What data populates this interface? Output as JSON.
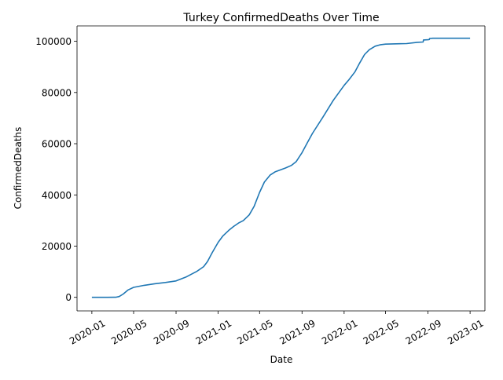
{
  "chart_data": {
    "type": "line",
    "title": "Turkey  ConfirmedDeaths Over Time",
    "xlabel": "Date",
    "ylabel": "ConfirmedDeaths",
    "xlim": [
      "2019-11-19",
      "2023-02-13"
    ],
    "ylim": [
      -5300,
      106000
    ],
    "x_ticks": [
      "2020-01",
      "2020-05",
      "2020-09",
      "2021-01",
      "2021-05",
      "2021-09",
      "2022-01",
      "2022-05",
      "2022-09",
      "2023-01"
    ],
    "y_ticks": [
      0,
      20000,
      40000,
      60000,
      80000,
      100000
    ],
    "y_tick_labels": [
      "0",
      "20000",
      "40000",
      "60000",
      "80000",
      "100000"
    ],
    "grid": false,
    "legend": "none",
    "line_color": "#1f77b4",
    "series": [
      {
        "x": [
          "2020-01-01",
          "2020-02-15",
          "2020-03-10",
          "2020-03-20",
          "2020-04-01",
          "2020-04-15",
          "2020-05-01",
          "2020-06-01",
          "2020-07-01",
          "2020-08-01",
          "2020-09-01",
          "2020-10-01",
          "2020-11-01",
          "2020-11-20",
          "2020-12-01",
          "2020-12-15",
          "2021-01-01",
          "2021-01-15",
          "2021-02-01",
          "2021-02-15",
          "2021-03-01",
          "2021-03-15",
          "2021-04-01",
          "2021-04-15",
          "2021-05-01",
          "2021-05-15",
          "2021-06-01",
          "2021-06-15",
          "2021-07-01",
          "2021-07-15",
          "2021-08-01",
          "2021-08-15",
          "2021-09-01",
          "2021-09-15",
          "2021-10-01",
          "2021-11-01",
          "2021-12-01",
          "2022-01-01",
          "2022-01-15",
          "2022-02-01",
          "2022-02-15",
          "2022-03-01",
          "2022-03-15",
          "2022-04-01",
          "2022-04-15",
          "2022-05-01",
          "2022-06-01",
          "2022-07-01",
          "2022-08-01",
          "2022-08-18",
          "2022-08-19",
          "2022-09-01",
          "2022-09-05",
          "2022-09-06",
          "2022-09-15",
          "2022-10-01",
          "2022-11-01",
          "2022-12-01",
          "2023-01-01"
        ],
        "y": [
          0,
          0,
          50,
          300,
          1300,
          2900,
          3900,
          4700,
          5300,
          5800,
          6400,
          8000,
          10200,
          12000,
          14000,
          17500,
          21500,
          24000,
          26200,
          27700,
          29000,
          30000,
          32200,
          35500,
          41000,
          45000,
          47800,
          49000,
          49800,
          50500,
          51500,
          53000,
          56500,
          60000,
          64000,
          70500,
          77000,
          82800,
          85000,
          88000,
          91500,
          94800,
          96700,
          98100,
          98600,
          98900,
          99000,
          99100,
          99600,
          99700,
          100500,
          100600,
          100700,
          101100,
          101200,
          101200,
          101200,
          101200,
          101200
        ]
      }
    ]
  }
}
